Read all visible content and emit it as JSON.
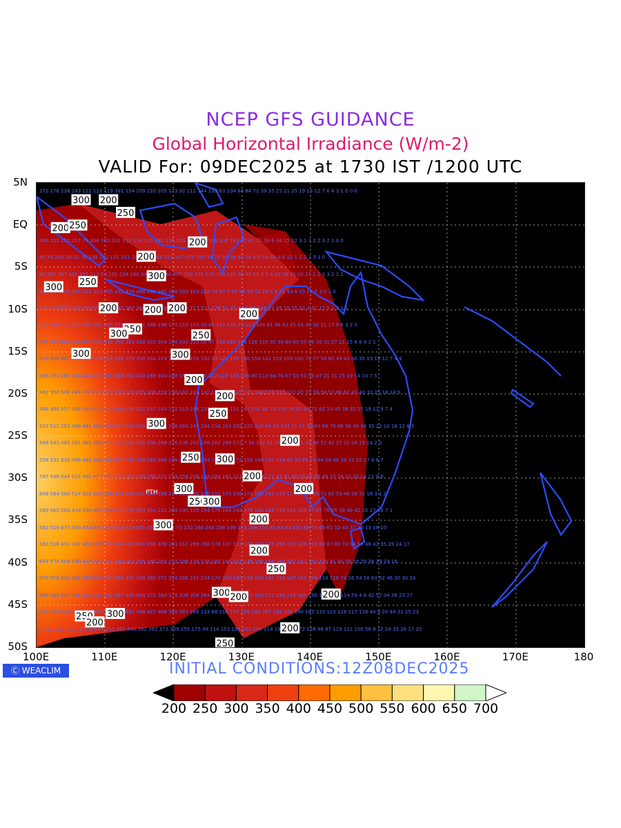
{
  "titles": {
    "line1": "NCEP GFS GUIDANCE",
    "line2": "Global Horizontal Irradiance (W/m-2)",
    "line3": "VALID For: 09DEC2025 at 1730 IST /1200 UTC"
  },
  "axes": {
    "lat_labels": [
      "5N",
      "EQ",
      "5S",
      "10S",
      "15S",
      "20S",
      "25S",
      "30S",
      "35S",
      "40S",
      "45S",
      "50S"
    ],
    "lon_labels": [
      "100E",
      "110E",
      "120E",
      "130E",
      "140E",
      "150E",
      "160E",
      "170E",
      "180"
    ]
  },
  "map": {
    "extent": {
      "lon": [
        100,
        180
      ],
      "lat": [
        -50,
        5
      ]
    },
    "land_line_color": "#2b4cff",
    "city_label": "PTH",
    "contour_labels": [
      {
        "text": "300",
        "lon": 106.5,
        "lat": 3.0
      },
      {
        "text": "200",
        "lon": 110.5,
        "lat": 3.0
      },
      {
        "text": "250",
        "lon": 113,
        "lat": 1.5
      },
      {
        "text": "200",
        "lon": 103.5,
        "lat": -0.3
      },
      {
        "text": "250",
        "lon": 106,
        "lat": 0
      },
      {
        "text": "200",
        "lon": 123.5,
        "lat": -2.0
      },
      {
        "text": "200",
        "lon": 116,
        "lat": -3.7
      },
      {
        "text": "300",
        "lon": 102.5,
        "lat": -7.3
      },
      {
        "text": "250",
        "lon": 107.5,
        "lat": -6.7
      },
      {
        "text": "300",
        "lon": 117.5,
        "lat": -6
      },
      {
        "text": "200",
        "lon": 110.5,
        "lat": -9.8
      },
      {
        "text": "200",
        "lon": 117,
        "lat": -10
      },
      {
        "text": "200",
        "lon": 120.5,
        "lat": -9.8
      },
      {
        "text": "200",
        "lon": 131,
        "lat": -10.5
      },
      {
        "text": "250",
        "lon": 114,
        "lat": -12.3
      },
      {
        "text": "300",
        "lon": 112,
        "lat": -12.8
      },
      {
        "text": "250",
        "lon": 124,
        "lat": -13
      },
      {
        "text": "300",
        "lon": 106.5,
        "lat": -15.2
      },
      {
        "text": "300",
        "lon": 121,
        "lat": -15.3
      },
      {
        "text": "200",
        "lon": 123,
        "lat": -18.3
      },
      {
        "text": "200",
        "lon": 127.5,
        "lat": -20.2
      },
      {
        "text": "250",
        "lon": 126.5,
        "lat": -22.3
      },
      {
        "text": "300",
        "lon": 117.5,
        "lat": -23.5
      },
      {
        "text": "200",
        "lon": 137,
        "lat": -25.5
      },
      {
        "text": "250",
        "lon": 122.5,
        "lat": -27.5
      },
      {
        "text": "300",
        "lon": 127.5,
        "lat": -27.7
      },
      {
        "text": "200",
        "lon": 131.5,
        "lat": -29.7
      },
      {
        "text": "200",
        "lon": 139,
        "lat": -31.2
      },
      {
        "text": "300",
        "lon": 121.5,
        "lat": -31.2
      },
      {
        "text": "250",
        "lon": 123.5,
        "lat": -32.7
      },
      {
        "text": "300",
        "lon": 125.5,
        "lat": -32.7
      },
      {
        "text": "200",
        "lon": 132.5,
        "lat": -34.8
      },
      {
        "text": "300",
        "lon": 118.5,
        "lat": -35.5
      },
      {
        "text": "200",
        "lon": 132.5,
        "lat": -38.5
      },
      {
        "text": "250",
        "lon": 135,
        "lat": -40.7
      },
      {
        "text": "300",
        "lon": 127,
        "lat": -43.5
      },
      {
        "text": "200",
        "lon": 129.5,
        "lat": -44
      },
      {
        "text": "200",
        "lon": 143,
        "lat": -43.7
      },
      {
        "text": "250",
        "lon": 107,
        "lat": -46.3
      },
      {
        "text": "200",
        "lon": 108.5,
        "lat": -47
      },
      {
        "text": "300",
        "lon": 111.5,
        "lat": -46
      },
      {
        "text": "200",
        "lon": 137,
        "lat": -47.7
      },
      {
        "text": "250",
        "lon": 127.5,
        "lat": -49.5
      }
    ]
  },
  "footer": {
    "brand": "WEACLIM",
    "initial": "INITIAL  CONDITIONS:12Z08DEC2025"
  },
  "colorbar": {
    "labels": [
      "200",
      "250",
      "300",
      "350",
      "400",
      "450",
      "500",
      "550",
      "600",
      "650",
      "700"
    ],
    "colors": [
      "#a00000",
      "#c01010",
      "#d82818",
      "#f04010",
      "#ff6a00",
      "#ff9c00",
      "#ffc040",
      "#ffe080",
      "#fff6b0",
      "#cff5c8"
    ],
    "under_color": "#000000",
    "over_color": "#ffffff"
  }
}
